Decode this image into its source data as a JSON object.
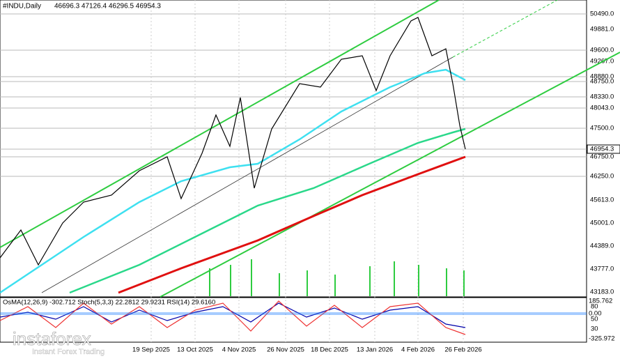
{
  "header": {
    "title": "#INDU,Daily",
    "ohlc": "46696.3 47126.4 46296.5 46954.3"
  },
  "price_axis": [
    "50490.0",
    "49881.0",
    "49600.0",
    "49267.0",
    "48880.0",
    "48750.0",
    "48330.0",
    "48043.0",
    "47500.0",
    "46954.3",
    "46750.0",
    "46250.0",
    "45613.0",
    "45001.0",
    "44389.0",
    "43777.0",
    "43183.0"
  ],
  "indicator": {
    "label": "OsMA(12,26,9) -302.712  Stoch(5,3,3) 22.2812 29.9231  RSI(14) 29.6160",
    "axis": [
      "185.762",
      "0.00",
      "-325.972"
    ],
    "levels": [
      "80",
      "50",
      "30"
    ]
  },
  "date_axis": [
    "19 Sep 2025",
    "13 Oct 2025",
    "4 Nov 2025",
    "26 Nov 2025",
    "18 Dec 2025",
    "13 Jan 2026",
    "4 Feb 2026",
    "26 Feb 2026"
  ],
  "watermark": {
    "brand": "instaforex",
    "tagline": "Instant Forex Trading"
  }
}
